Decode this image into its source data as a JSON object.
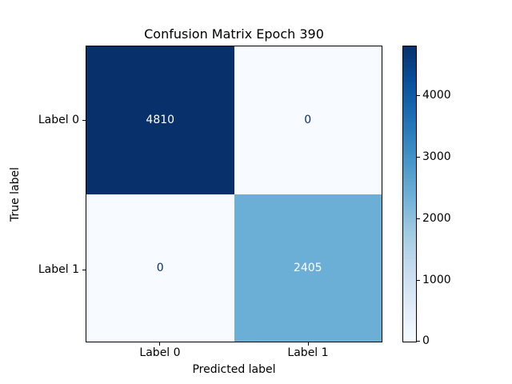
{
  "chart_data": {
    "type": "heatmap",
    "title": "Confusion Matrix Epoch 390",
    "xlabel": "Predicted label",
    "ylabel": "True label",
    "x_tick_labels": [
      "Label 0",
      "Label 1"
    ],
    "y_tick_labels": [
      "Label 0",
      "Label 1"
    ],
    "rows": [
      {
        "true_label": "Label 0",
        "values": [
          4810,
          0
        ]
      },
      {
        "true_label": "Label 1",
        "values": [
          0,
          2405
        ]
      }
    ],
    "vmin": 0,
    "vmax": 4810,
    "colormap": "Blues",
    "grid": false,
    "colorbar": {
      "position": "right",
      "ticks_top_to_bottom": [
        4000,
        3000,
        2000,
        1000,
        0
      ]
    },
    "colors": {
      "cell_max": "#08306b",
      "cell_mid": "#6baed6",
      "cell_min": "#f7fbff",
      "text_on_dark": "#ffffff",
      "text_on_light": "#08306b",
      "spine": "#000000",
      "background": "#ffffff"
    }
  }
}
